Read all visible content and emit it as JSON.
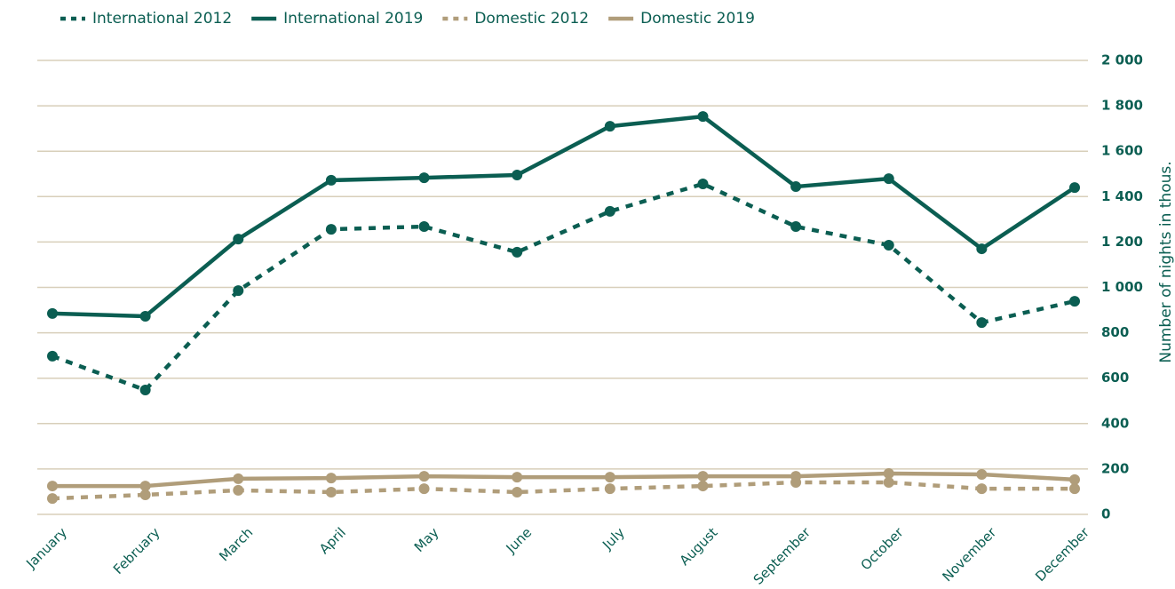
{
  "chart_data": {
    "type": "line",
    "categories": [
      "January",
      "February",
      "March",
      "April",
      "May",
      "June",
      "July",
      "August",
      "September",
      "October",
      "November",
      "December"
    ],
    "series": [
      {
        "name": "International 2012",
        "color": "#0b5e52",
        "linestyle": "dashed",
        "values": [
          697,
          548,
          986,
          1256,
          1268,
          1155,
          1335,
          1456,
          1268,
          1186,
          845,
          939
        ]
      },
      {
        "name": "International 2019",
        "color": "#0b5e52",
        "linestyle": "solid",
        "values": [
          885,
          873,
          1213,
          1472,
          1483,
          1495,
          1710,
          1753,
          1444,
          1479,
          1170,
          1440
        ]
      },
      {
        "name": "Domestic 2012",
        "color": "#b09d7a",
        "linestyle": "dashed",
        "values": [
          70,
          86,
          106,
          98,
          113,
          98,
          113,
          125,
          141,
          141,
          113,
          113
        ]
      },
      {
        "name": "Domestic 2019",
        "color": "#b09d7a",
        "linestyle": "solid",
        "values": [
          125,
          125,
          157,
          160,
          168,
          164,
          164,
          168,
          168,
          180,
          176,
          153
        ]
      }
    ],
    "y_axis_label": "Number of nights in thous.",
    "y_axis_side": "right",
    "ylim": [
      0,
      2000
    ],
    "yticks": [
      0,
      200,
      400,
      600,
      800,
      {
        "value": 1000,
        "label": "1 000"
      },
      {
        "value": 1200,
        "label": "1 200"
      },
      {
        "value": 1400,
        "label": "1 400"
      },
      {
        "value": 1600,
        "label": "1 600"
      },
      {
        "value": 1800,
        "label": "1 800"
      },
      {
        "value": 2000,
        "label": "2 000"
      }
    ],
    "grid": true,
    "legend": "top-left"
  }
}
